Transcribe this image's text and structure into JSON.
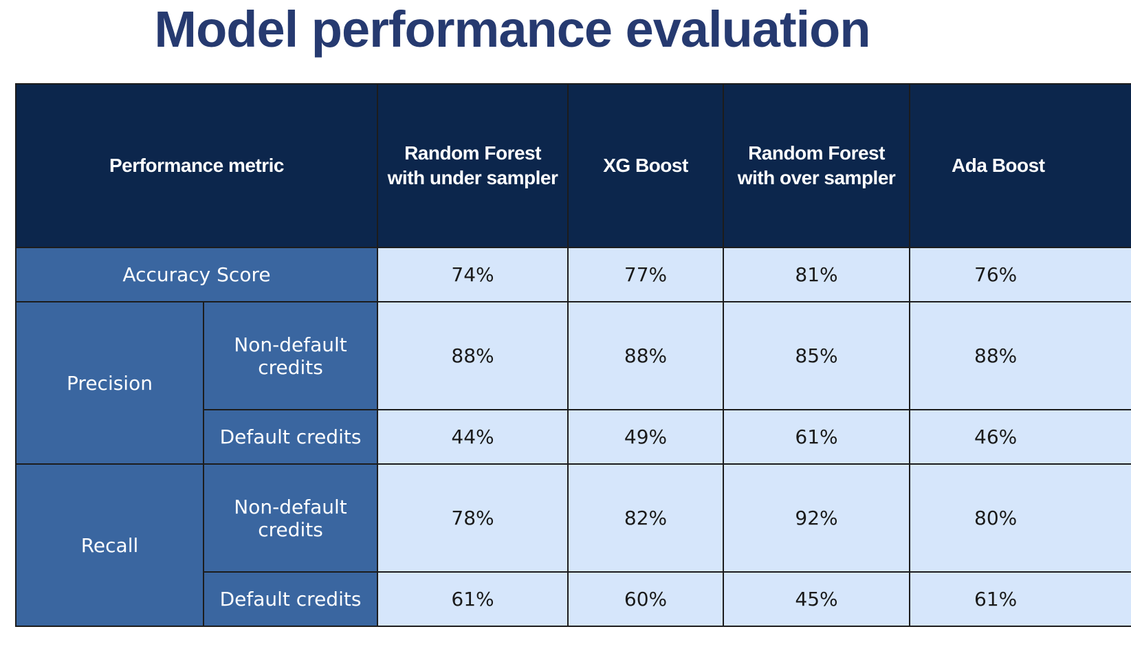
{
  "title": "Model performance evaluation",
  "table": {
    "header": {
      "metric_label": "Performance metric",
      "models": [
        "Random Forest with under sampler",
        "XG Boost",
        "Random Forest with over sampler",
        "Ada Boost"
      ]
    },
    "accuracy": {
      "label": "Accuracy Score",
      "values": [
        "74%",
        "77%",
        "81%",
        "76%"
      ]
    },
    "precision": {
      "label": "Precision",
      "non_default": {
        "label": "Non-default credits",
        "values": [
          "88%",
          "88%",
          "85%",
          "88%"
        ]
      },
      "default": {
        "label": "Default credits",
        "values": [
          "44%",
          "49%",
          "61%",
          "46%"
        ]
      }
    },
    "recall": {
      "label": "Recall",
      "non_default": {
        "label": "Non-default credits",
        "values": [
          "78%",
          "82%",
          "92%",
          "80%"
        ]
      },
      "default": {
        "label": "Default credits",
        "values": [
          "61%",
          "60%",
          "45%",
          "61%"
        ]
      }
    }
  },
  "colors": {
    "title": "#263a70",
    "header_bg": "#0c264c",
    "label_bg": "#3a66a0",
    "value_bg": "#d6e6fb"
  }
}
